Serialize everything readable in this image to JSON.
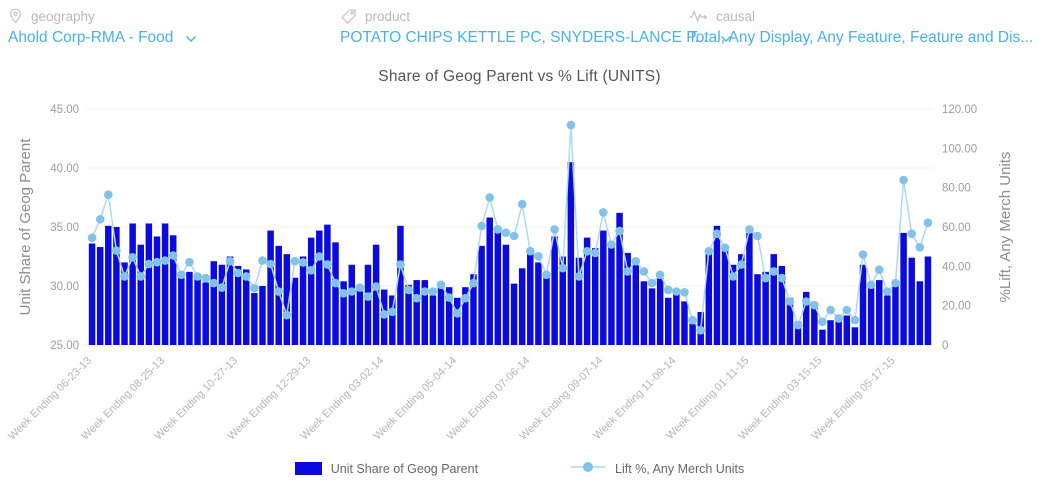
{
  "filter_bar": {
    "filters": [
      {
        "icon": "map-pin-icon",
        "label": "geography",
        "value": "Ahold Corp-RMA - Food"
      },
      {
        "icon": "tag-icon",
        "label": "product",
        "value": "POTATO CHIPS KETTLE PC, SNYDERS-LANCE P..."
      },
      {
        "icon": "pulse-icon",
        "label": "causal",
        "value": "Total, Any Display, Any Feature, Feature and Dis..."
      }
    ]
  },
  "chart_data": {
    "type": "bar",
    "combo": "bar+line",
    "title": "Share of Geog Parent vs % Lift (UNITS)",
    "grid": "horizontal-light",
    "legend_position": "bottom-center",
    "x_tick_labels": [
      "Week Ending 06-23-13",
      "Week Ending 08-25-13",
      "Week Ending 10-27-13",
      "Week Ending 12-29-13",
      "Week Ending 03-02-14",
      "Week Ending 05-04-14",
      "Week Ending 07-06-14",
      "Week Ending 09-07-14",
      "Week Ending 11-09-14",
      "Week Ending 01-11-15",
      "Week Ending 03-15-15",
      "Week Ending 05-17-15"
    ],
    "x_tick_indices": [
      0,
      9,
      18,
      27,
      36,
      45,
      54,
      63,
      72,
      81,
      90,
      99
    ],
    "left_axis": {
      "label": "Unit Share of Geog Parent",
      "min": 25,
      "max": 45,
      "ticks": [
        "45.00",
        "40.00",
        "35.00",
        "30.00",
        "25.00"
      ]
    },
    "right_axis": {
      "label": "%Lift, Any Merch Units",
      "min": 0,
      "max": 120,
      "ticks": [
        "120.00",
        "100.00",
        "80.00",
        "60.00",
        "40.00",
        "20.00",
        "0"
      ]
    },
    "series": [
      {
        "name": "Unit Share of Geog Parent",
        "type": "bar",
        "axis": "left",
        "color": "#0b0bdf",
        "values": [
          33.6,
          33.3,
          35.1,
          35.0,
          32.0,
          35.3,
          33.5,
          35.3,
          34.2,
          35.3,
          34.3,
          30.9,
          31.2,
          30.7,
          30.3,
          32.1,
          31.8,
          32.5,
          31.7,
          31.4,
          29.4,
          30.0,
          34.7,
          33.4,
          32.7,
          30.7,
          32.5,
          34.1,
          34.7,
          35.2,
          33.7,
          30.4,
          31.8,
          30.1,
          31.8,
          33.5,
          29.7,
          29.2,
          35.1,
          30.1,
          30.5,
          30.5,
          29.2,
          30.2,
          29.9,
          29.0,
          29.9,
          31.0,
          33.4,
          35.8,
          34.8,
          33.5,
          30.2,
          31.5,
          33.2,
          32.0,
          30.8,
          34.2,
          32.5,
          40.5,
          32.4,
          34.1,
          33.2,
          34.7,
          33.7,
          36.2,
          32.8,
          31.8,
          30.4,
          29.8,
          30.7,
          29.0,
          29.7,
          28.7,
          26.8,
          27.8,
          32.9,
          35.1,
          33.5,
          31.8,
          32.7,
          34.5,
          31.0,
          31.2,
          32.7,
          31.7,
          29.0,
          27.0,
          29.5,
          28.4,
          26.3,
          27.1,
          27.4,
          27.5,
          26.5,
          31.8,
          30.0,
          30.5,
          29.2,
          30.0,
          34.5,
          32.4,
          30.4,
          32.5
        ]
      },
      {
        "name": "Lift %, Any Merch Units",
        "type": "line",
        "axis": "right",
        "color": "#b0d8f2",
        "marker_color": "#82c2ea",
        "values": [
          54.5,
          63.9,
          76.4,
          48.0,
          34.9,
          44.6,
          34.9,
          41.2,
          42.1,
          42.9,
          45.5,
          35.7,
          42.1,
          34.9,
          34.0,
          31.5,
          29.2,
          42.6,
          36.6,
          34.9,
          28.9,
          42.9,
          41.2,
          27.2,
          15.2,
          42.6,
          42.0,
          38.0,
          45.0,
          41.0,
          31.5,
          26.3,
          27.2,
          29.2,
          24.6,
          29.7,
          15.6,
          16.9,
          40.9,
          28.0,
          23.8,
          27.2,
          27.2,
          30.6,
          24.1,
          16.1,
          23.8,
          31.5,
          60.5,
          75.0,
          58.8,
          57.1,
          55.4,
          71.6,
          47.7,
          45.1,
          35.7,
          58.8,
          39.1,
          111.8,
          34.9,
          47.7,
          46.8,
          67.4,
          51.1,
          58.0,
          37.4,
          42.6,
          37.4,
          31.5,
          35.7,
          28.0,
          27.2,
          26.8,
          12.6,
          7.5,
          47.7,
          56.6,
          49.4,
          34.9,
          40.9,
          58.8,
          55.4,
          34.0,
          37.4,
          34.0,
          22.1,
          10.1,
          22.1,
          20.3,
          11.8,
          17.8,
          13.5,
          17.8,
          12.6,
          46.0,
          30.6,
          38.3,
          27.2,
          31.5,
          83.9,
          56.6,
          49.7,
          62.2
        ]
      }
    ]
  },
  "colors": {
    "bar": "#0b0bdf",
    "line": "#b0d8f2",
    "marker": "#82c2ea",
    "accent_blue": "#47b2e8",
    "label_gray": "#b9b9b9",
    "tick_text": "#9e9e9e",
    "x_label_text": "#b5b5b5",
    "axis_title": "#8d8d8d",
    "grid": "#f1f1f1",
    "title_text": "#555555"
  }
}
